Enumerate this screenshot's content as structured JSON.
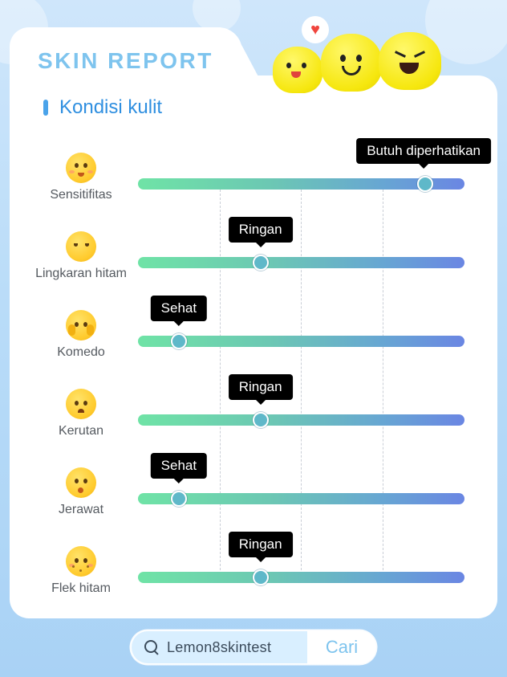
{
  "header": {
    "title": "SKIN REPORT",
    "section_title": "Kondisi kulit",
    "heart_icon": "♥"
  },
  "colors": {
    "accent": "#7ec4ee",
    "section": "#2f8fe0",
    "track_start": "#6fe3a6",
    "track_end": "#6a86e3",
    "tooltip_bg": "#000000"
  },
  "metrics": [
    {
      "label": "Sensitifitas",
      "status": "Butuh diperhatikan",
      "level": 0.88,
      "emoji": "kiss-blush-emoji"
    },
    {
      "label": "Lingkaran hitam",
      "status": "Ringan",
      "level": 0.375,
      "emoji": "tired-eyes-emoji"
    },
    {
      "label": "Komedo",
      "status": "Sehat",
      "level": 0.125,
      "emoji": "hands-on-face-emoji"
    },
    {
      "label": "Kerutan",
      "status": "Ringan",
      "level": 0.375,
      "emoji": "frowning-emoji"
    },
    {
      "label": "Jerawat",
      "status": "Sehat",
      "level": 0.125,
      "emoji": "surprised-emoji"
    },
    {
      "label": "Flek hitam",
      "status": "Ringan",
      "level": 0.375,
      "emoji": "squint-spots-emoji"
    }
  ],
  "search": {
    "query": "Lemon8skintest",
    "button_label": "Cari",
    "icon": "search-icon"
  }
}
